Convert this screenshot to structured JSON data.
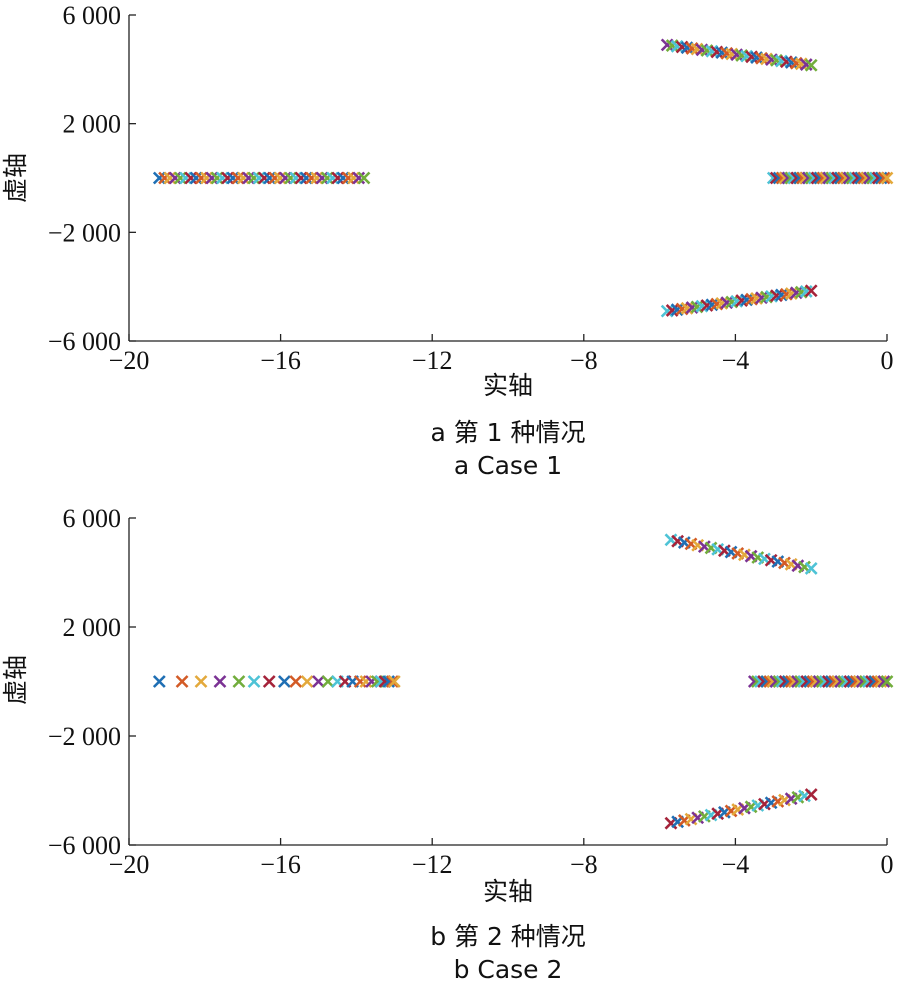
{
  "chart_data": [
    {
      "type": "scatter",
      "caption_cn": "a 第 1 种情况",
      "caption_en": "a Case 1",
      "xlabel": "实轴",
      "ylabel": "虚轴",
      "xlim": [
        -20,
        0
      ],
      "ylim": [
        -6000,
        6000
      ],
      "xticks": [
        -20,
        -16,
        -12,
        -8,
        -4,
        0
      ],
      "xtick_labels": [
        "−20",
        "−16",
        "−12",
        "−8",
        "−4",
        "0"
      ],
      "yticks": [
        -6000,
        -2000,
        2000,
        6000
      ],
      "ytick_labels": [
        "−6 000",
        "−2 000",
        "2 000",
        "6 000"
      ],
      "grid": false,
      "marker": "x",
      "clusters": [
        {
          "x_start": -19.2,
          "x_end": -13.8,
          "y_start": 0,
          "y_end": 0,
          "count": 40
        },
        {
          "x_start": -3.0,
          "x_end": 0.0,
          "y_start": 0,
          "y_end": 0,
          "count": 40
        },
        {
          "x_start": -5.8,
          "x_end": -2.0,
          "y_start": 4900,
          "y_end": 4150,
          "count": 30
        },
        {
          "x_start": -5.8,
          "x_end": -2.0,
          "y_start": -4900,
          "y_end": -4150,
          "count": 30
        }
      ]
    },
    {
      "type": "scatter",
      "caption_cn": "b 第 2 种情况",
      "caption_en": "b Case 2",
      "xlabel": "实轴",
      "ylabel": "虚轴",
      "xlim": [
        -20,
        0
      ],
      "ylim": [
        -6000,
        6000
      ],
      "xticks": [
        -20,
        -16,
        -12,
        -8,
        -4,
        0
      ],
      "xtick_labels": [
        "−20",
        "−16",
        "−12",
        "−8",
        "−4",
        "0"
      ],
      "yticks": [
        -6000,
        -2000,
        2000,
        6000
      ],
      "ytick_labels": [
        "−6 000",
        "−2 000",
        "2 000",
        "6 000"
      ],
      "grid": false,
      "marker": "x",
      "points": [
        {
          "x": -19.2,
          "y": 0
        },
        {
          "x": -18.6,
          "y": 0
        },
        {
          "x": -18.1,
          "y": 0
        },
        {
          "x": -17.6,
          "y": 0
        },
        {
          "x": -17.1,
          "y": 0
        },
        {
          "x": -16.7,
          "y": 0
        },
        {
          "x": -16.3,
          "y": 0
        },
        {
          "x": -15.9,
          "y": 0
        },
        {
          "x": -15.6,
          "y": 0
        },
        {
          "x": -15.3,
          "y": 0
        },
        {
          "x": -15.0,
          "y": 0
        },
        {
          "x": -14.75,
          "y": 0
        },
        {
          "x": -14.5,
          "y": 0
        },
        {
          "x": -14.3,
          "y": 0
        },
        {
          "x": -14.1,
          "y": 0
        },
        {
          "x": -13.9,
          "y": 0
        },
        {
          "x": -13.75,
          "y": 0
        },
        {
          "x": -13.6,
          "y": 0
        },
        {
          "x": -13.45,
          "y": 0
        },
        {
          "x": -13.35,
          "y": 0
        },
        {
          "x": -13.25,
          "y": 0
        },
        {
          "x": -13.15,
          "y": 0
        },
        {
          "x": -13.05,
          "y": 0
        },
        {
          "x": -13.0,
          "y": 0
        }
      ],
      "clusters": [
        {
          "x_start": -3.5,
          "x_end": 0.0,
          "y_start": 0,
          "y_end": 0,
          "count": 44
        },
        {
          "x_start": -5.7,
          "x_end": -2.0,
          "y_start": 5200,
          "y_end": 4150,
          "count": 22
        },
        {
          "x_start": -5.7,
          "x_end": -2.0,
          "y_start": -5200,
          "y_end": -4150,
          "count": 22
        }
      ]
    }
  ],
  "palette": [
    "#1f6fb4",
    "#d35b26",
    "#e3a93c",
    "#7b3294",
    "#72ad3c",
    "#4ec3d6",
    "#a5233a"
  ]
}
